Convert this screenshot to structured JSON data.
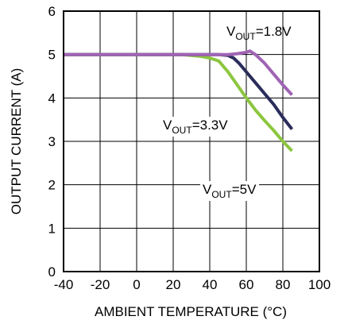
{
  "chart_data": {
    "type": "line",
    "xlabel": "AMBIENT TEMPERATURE (°C)",
    "ylabel": "OUTPUT CURRENT (A)",
    "xlim": [
      -40,
      100
    ],
    "ylim": [
      0,
      6
    ],
    "x_ticks": [
      "-40",
      "-20",
      "0",
      "20",
      "40",
      "60",
      "80",
      "100"
    ],
    "y_ticks": [
      "0",
      "1",
      "2",
      "3",
      "4",
      "5",
      "6"
    ],
    "grid": true,
    "series": [
      {
        "color": "#a064b4",
        "x": [
          -40,
          25,
          50,
          55,
          60,
          62,
          65,
          70,
          75,
          80,
          85
        ],
        "y": [
          5.0,
          5.0,
          5.0,
          5.02,
          5.05,
          5.08,
          5.0,
          4.8,
          4.55,
          4.3,
          4.07
        ]
      },
      {
        "color": "#2a2d5a",
        "x": [
          -40,
          25,
          45,
          50,
          53,
          56,
          60,
          65,
          70,
          75,
          80,
          85
        ],
        "y": [
          5.0,
          5.0,
          5.0,
          4.98,
          4.92,
          4.8,
          4.6,
          4.35,
          4.1,
          3.85,
          3.55,
          3.28
        ]
      },
      {
        "color": "#8cc63f",
        "x": [
          -40,
          25,
          35,
          40,
          45,
          50,
          55,
          60,
          65,
          70,
          75,
          80,
          85
        ],
        "y": [
          5.0,
          5.0,
          4.96,
          4.92,
          4.85,
          4.6,
          4.3,
          4.0,
          3.72,
          3.48,
          3.25,
          3.0,
          2.78
        ]
      }
    ],
    "annotations": [
      {
        "main": "V",
        "sub": "OUT",
        "rest": "=1.8V",
        "series_index": 0
      },
      {
        "main": "V",
        "sub": "OUT",
        "rest": "=3.3V",
        "series_index": 1
      },
      {
        "main": "V",
        "sub": "OUT",
        "rest": "=5V",
        "series_index": 2
      }
    ]
  }
}
